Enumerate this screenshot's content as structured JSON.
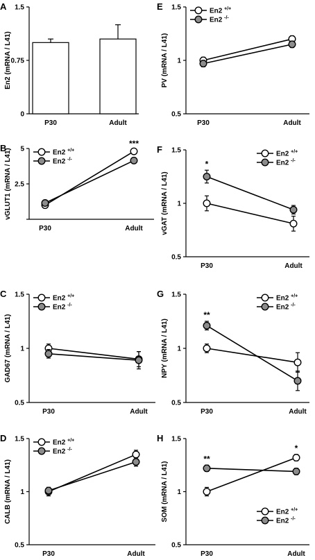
{
  "chart_data": [
    {
      "panel": "A",
      "type": "bar",
      "categories": [
        "P30",
        "Adult"
      ],
      "values": [
        1.0,
        1.05
      ],
      "errors": [
        0.05,
        0.2
      ],
      "yticks": [
        "0",
        "0.75",
        "1.5"
      ],
      "ylim": [
        0,
        1.5
      ],
      "ylabel": "En2 (mRNA / L41)",
      "legend": null,
      "significance": []
    },
    {
      "panel": "B",
      "type": "line",
      "categories": [
        "P30",
        "Adult"
      ],
      "series": [
        {
          "name": "En2 +/+",
          "marker": "open",
          "values": [
            1.0,
            4.8
          ],
          "errors": [
            0.1,
            0.1
          ]
        },
        {
          "name": "En2 -/-",
          "marker": "filled",
          "values": [
            1.15,
            4.15
          ],
          "errors": [
            0.1,
            0.1
          ]
        }
      ],
      "yticks": [
        "",
        "2.5",
        "5"
      ],
      "ylim": [
        0,
        5
      ],
      "ylabel": "vGLUT1 (mRNA / L41)",
      "legend": {
        "position": "top-left"
      },
      "significance": [
        {
          "category": "Adult",
          "label": "***"
        }
      ]
    },
    {
      "panel": "C",
      "type": "line",
      "categories": [
        "P30",
        "Adult"
      ],
      "series": [
        {
          "name": "En2 +/+",
          "marker": "open",
          "values": [
            1.0,
            0.9
          ],
          "errors": [
            0.04,
            0.07
          ]
        },
        {
          "name": "En2 -/-",
          "marker": "filled",
          "values": [
            0.95,
            0.89
          ],
          "errors": [
            0.04,
            0.08
          ]
        }
      ],
      "yticks": [
        "0.5",
        "1",
        "1.5"
      ],
      "ylim": [
        0.5,
        1.5
      ],
      "ylabel": "GAD67 (mRNA / L41)",
      "legend": {
        "position": "top-left"
      },
      "significance": []
    },
    {
      "panel": "D",
      "type": "line",
      "categories": [
        "P30",
        "Adult"
      ],
      "series": [
        {
          "name": "En2 +/+",
          "marker": "open",
          "values": [
            1.0,
            1.35
          ],
          "errors": [
            0.04,
            0.04
          ]
        },
        {
          "name": "En2 -/-",
          "marker": "filled",
          "values": [
            1.01,
            1.28
          ],
          "errors": [
            0.03,
            0.04
          ]
        }
      ],
      "yticks": [
        "0.5",
        "1",
        "1.5"
      ],
      "ylim": [
        0.5,
        1.5
      ],
      "ylabel": "CALB (mRNA / L41)",
      "legend": {
        "position": "top-left"
      },
      "significance": []
    },
    {
      "panel": "E",
      "type": "line",
      "categories": [
        "P30",
        "Adult"
      ],
      "series": [
        {
          "name": "En2 +/+",
          "marker": "open",
          "values": [
            1.0,
            1.2
          ],
          "errors": [
            0.03,
            0.03
          ]
        },
        {
          "name": "En2 -/-",
          "marker": "filled",
          "values": [
            0.97,
            1.15
          ],
          "errors": [
            0.03,
            0.03
          ]
        }
      ],
      "yticks": [
        "0.5",
        "1",
        "1.5"
      ],
      "ylim": [
        0.5,
        1.5
      ],
      "ylabel": "PV (mRNA / L41)",
      "legend": {
        "position": "top-left"
      },
      "significance": []
    },
    {
      "panel": "F",
      "type": "line",
      "categories": [
        "P30",
        "Adult"
      ],
      "series": [
        {
          "name": "En2 +/+",
          "marker": "open",
          "values": [
            1.0,
            0.81
          ],
          "errors": [
            0.07,
            0.07
          ]
        },
        {
          "name": "En2 -/-",
          "marker": "filled",
          "values": [
            1.25,
            0.94
          ],
          "errors": [
            0.06,
            0.04
          ]
        }
      ],
      "yticks": [
        "0.5",
        "1",
        "1.5"
      ],
      "ylim": [
        0.5,
        1.5
      ],
      "ylabel": "vGAT (mRNA / L41)",
      "legend": {
        "position": "top-right"
      },
      "significance": [
        {
          "category": "P30",
          "label": "*"
        }
      ]
    },
    {
      "panel": "G",
      "type": "line",
      "categories": [
        "P30",
        "Adult"
      ],
      "series": [
        {
          "name": "En2 +/+",
          "marker": "open",
          "values": [
            1.0,
            0.87
          ],
          "errors": [
            0.04,
            0.09
          ]
        },
        {
          "name": "En2 -/-",
          "marker": "filled",
          "values": [
            1.21,
            0.7
          ],
          "errors": [
            0.04,
            0.09
          ]
        }
      ],
      "yticks": [
        "0.5",
        "1",
        "1.5"
      ],
      "ylim": [
        0.5,
        1.5
      ],
      "ylabel": "NPY (mRNA / L41)",
      "legend": {
        "position": "top-right"
      },
      "significance": [
        {
          "category": "P30",
          "label": "**"
        }
      ]
    },
    {
      "panel": "H",
      "type": "line",
      "categories": [
        "P30",
        "Adult"
      ],
      "series": [
        {
          "name": "En2 +/+",
          "marker": "open",
          "values": [
            1.0,
            1.32
          ],
          "errors": [
            0.04,
            0.03
          ]
        },
        {
          "name": "En2 -/-",
          "marker": "filled",
          "values": [
            1.22,
            1.19
          ],
          "errors": [
            0.03,
            0.03
          ]
        }
      ],
      "yticks": [
        "0.5",
        "1",
        "1.5"
      ],
      "ylim": [
        0.5,
        1.5
      ],
      "ylabel": "SOM (mRNA / L41)",
      "legend": {
        "position": "bottom-right"
      },
      "significance": [
        {
          "category": "P30",
          "label": "**"
        },
        {
          "category": "Adult",
          "label": "*"
        }
      ]
    }
  ]
}
